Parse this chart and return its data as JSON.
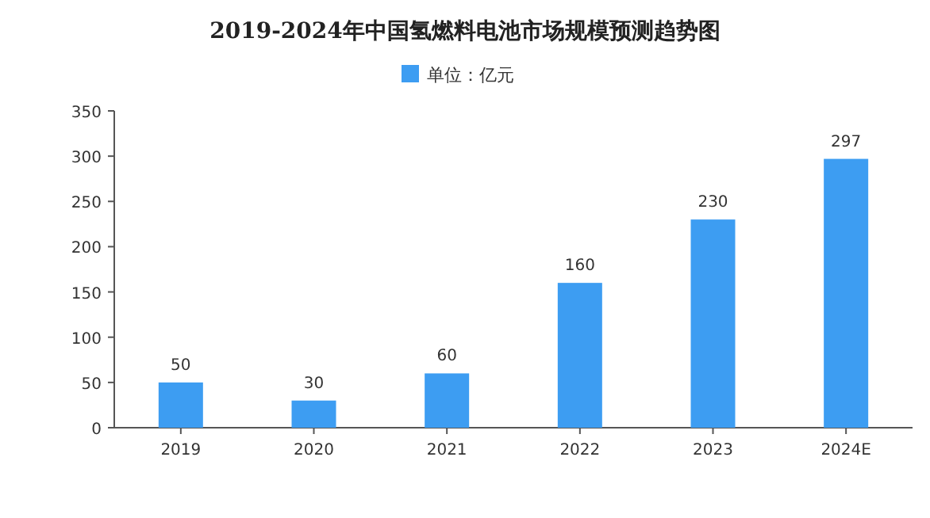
{
  "chart_data": {
    "type": "bar",
    "title": "2019-2024年中国氢燃料电池市场规模预测趋势图",
    "categories": [
      "2019",
      "2020",
      "2021",
      "2022",
      "2023",
      "2024E"
    ],
    "series": [
      {
        "name": "单位：亿元",
        "color": "#3d9df2",
        "values": [
          50,
          30,
          60,
          160,
          230,
          297
        ]
      }
    ],
    "ylim": [
      0,
      350
    ],
    "yticks": [
      0,
      50,
      100,
      150,
      200,
      250,
      300,
      350
    ],
    "data_labels": true,
    "legend": "top",
    "grid": false
  }
}
